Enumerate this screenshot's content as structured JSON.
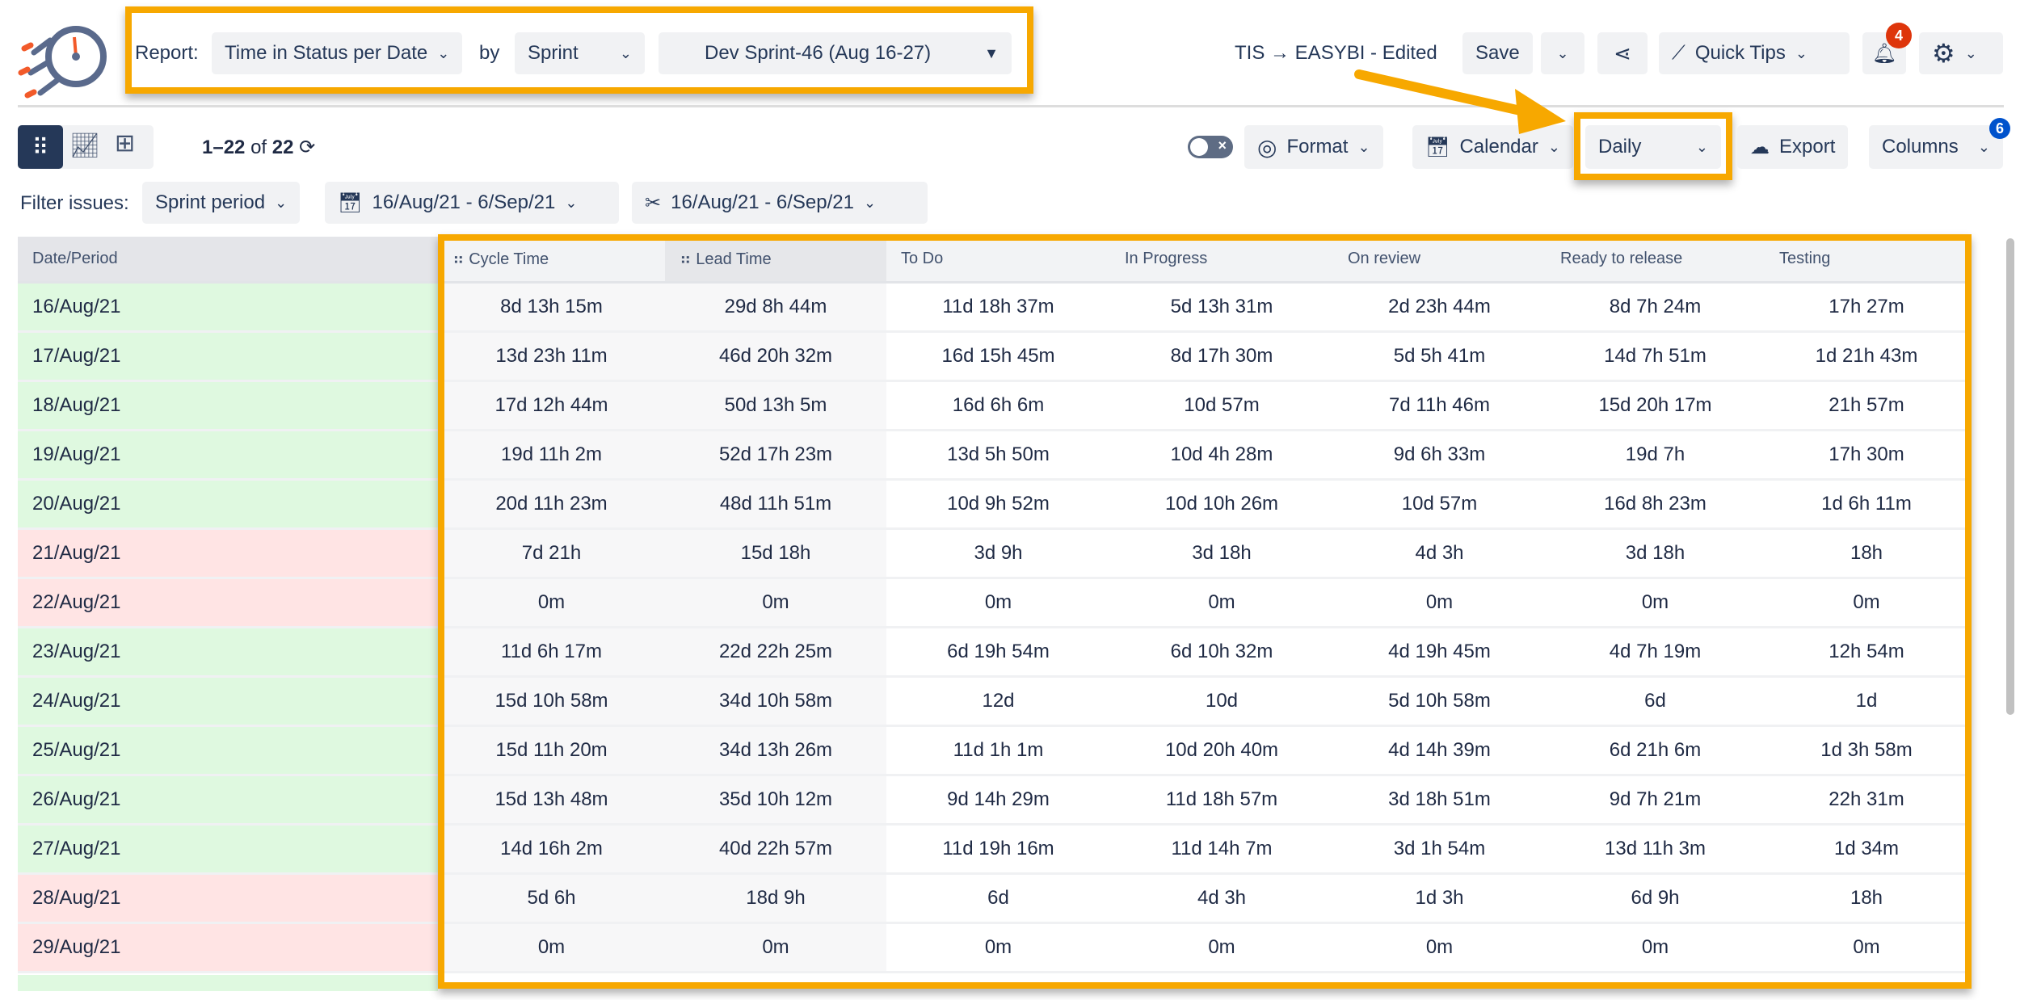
{
  "header": {
    "report_label": "Report:",
    "report_type": "Time in Status per Date",
    "by_label": "by",
    "group_by": "Sprint",
    "sprint": "Dev Sprint-46 (Aug 16-27)",
    "title": "TIS → EASYBI - Edited",
    "save": "Save",
    "quick_tips": "Quick Tips",
    "notifications_count": "4"
  },
  "toolbar": {
    "pagination_range": "1–22",
    "pagination_of": "of",
    "pagination_total": "22",
    "format": "Format",
    "calendar": "Calendar",
    "period": "Daily",
    "export": "Export",
    "columns": "Columns",
    "columns_count": "6"
  },
  "filter": {
    "label": "Filter issues:",
    "mode": "Sprint period",
    "created_range": "16/Aug/21 - 6/Sep/21",
    "resolved_range": "16/Aug/21 - 6/Sep/21"
  },
  "colors": {
    "accent": "#f7a800",
    "weekday": "#dff9e0",
    "weekend": "#ffe4e4",
    "text": "#1f2a44"
  },
  "table": {
    "headers": [
      "Date/Period",
      "Cycle Time",
      "Lead Time",
      "To Do",
      "In Progress",
      "On review",
      "Ready to release",
      "Testing"
    ],
    "rows": [
      {
        "weekend": false,
        "cells": [
          "16/Aug/21",
          "8d 13h 15m",
          "29d 8h 44m",
          "11d 18h 37m",
          "5d 13h 31m",
          "2d 23h 44m",
          "8d 7h 24m",
          "17h 27m"
        ]
      },
      {
        "weekend": false,
        "cells": [
          "17/Aug/21",
          "13d 23h 11m",
          "46d 20h 32m",
          "16d 15h 45m",
          "8d 17h 30m",
          "5d 5h 41m",
          "14d 7h 51m",
          "1d 21h 43m"
        ]
      },
      {
        "weekend": false,
        "cells": [
          "18/Aug/21",
          "17d 12h 44m",
          "50d 13h 5m",
          "16d 6h 6m",
          "10d 57m",
          "7d 11h 46m",
          "15d 20h 17m",
          "21h 57m"
        ]
      },
      {
        "weekend": false,
        "cells": [
          "19/Aug/21",
          "19d 11h 2m",
          "52d 17h 23m",
          "13d 5h 50m",
          "10d 4h 28m",
          "9d 6h 33m",
          "19d 7h",
          "17h 30m"
        ]
      },
      {
        "weekend": false,
        "cells": [
          "20/Aug/21",
          "20d 11h 23m",
          "48d 11h 51m",
          "10d 9h 52m",
          "10d 10h 26m",
          "10d 57m",
          "16d 8h 23m",
          "1d 6h 11m"
        ]
      },
      {
        "weekend": true,
        "cells": [
          "21/Aug/21",
          "7d 21h",
          "15d 18h",
          "3d 9h",
          "3d 18h",
          "4d 3h",
          "3d 18h",
          "18h"
        ]
      },
      {
        "weekend": true,
        "cells": [
          "22/Aug/21",
          "0m",
          "0m",
          "0m",
          "0m",
          "0m",
          "0m",
          "0m"
        ]
      },
      {
        "weekend": false,
        "cells": [
          "23/Aug/21",
          "11d 6h 17m",
          "22d 22h 25m",
          "6d 19h 54m",
          "6d 10h 32m",
          "4d 19h 45m",
          "4d 7h 19m",
          "12h 54m"
        ]
      },
      {
        "weekend": false,
        "cells": [
          "24/Aug/21",
          "15d 10h 58m",
          "34d 10h 58m",
          "12d",
          "10d",
          "5d 10h 58m",
          "6d",
          "1d"
        ]
      },
      {
        "weekend": false,
        "cells": [
          "25/Aug/21",
          "15d 11h 20m",
          "34d 13h 26m",
          "11d 1h 1m",
          "10d 20h 40m",
          "4d 14h 39m",
          "6d 21h 6m",
          "1d 3h 58m"
        ]
      },
      {
        "weekend": false,
        "cells": [
          "26/Aug/21",
          "15d 13h 48m",
          "35d 10h 12m",
          "9d 14h 29m",
          "11d 18h 57m",
          "3d 18h 51m",
          "9d 7h 21m",
          "22h 31m"
        ]
      },
      {
        "weekend": false,
        "cells": [
          "27/Aug/21",
          "14d 16h 2m",
          "40d 22h 57m",
          "11d 19h 16m",
          "11d 14h 7m",
          "3d 1h 54m",
          "13d 11h 3m",
          "1d 34m"
        ]
      },
      {
        "weekend": true,
        "cells": [
          "28/Aug/21",
          "5d 6h",
          "18d 9h",
          "6d",
          "4d 3h",
          "1d 3h",
          "6d 9h",
          "18h"
        ]
      },
      {
        "weekend": true,
        "cells": [
          "29/Aug/21",
          "0m",
          "0m",
          "0m",
          "0m",
          "0m",
          "0m",
          "0m"
        ]
      }
    ]
  }
}
